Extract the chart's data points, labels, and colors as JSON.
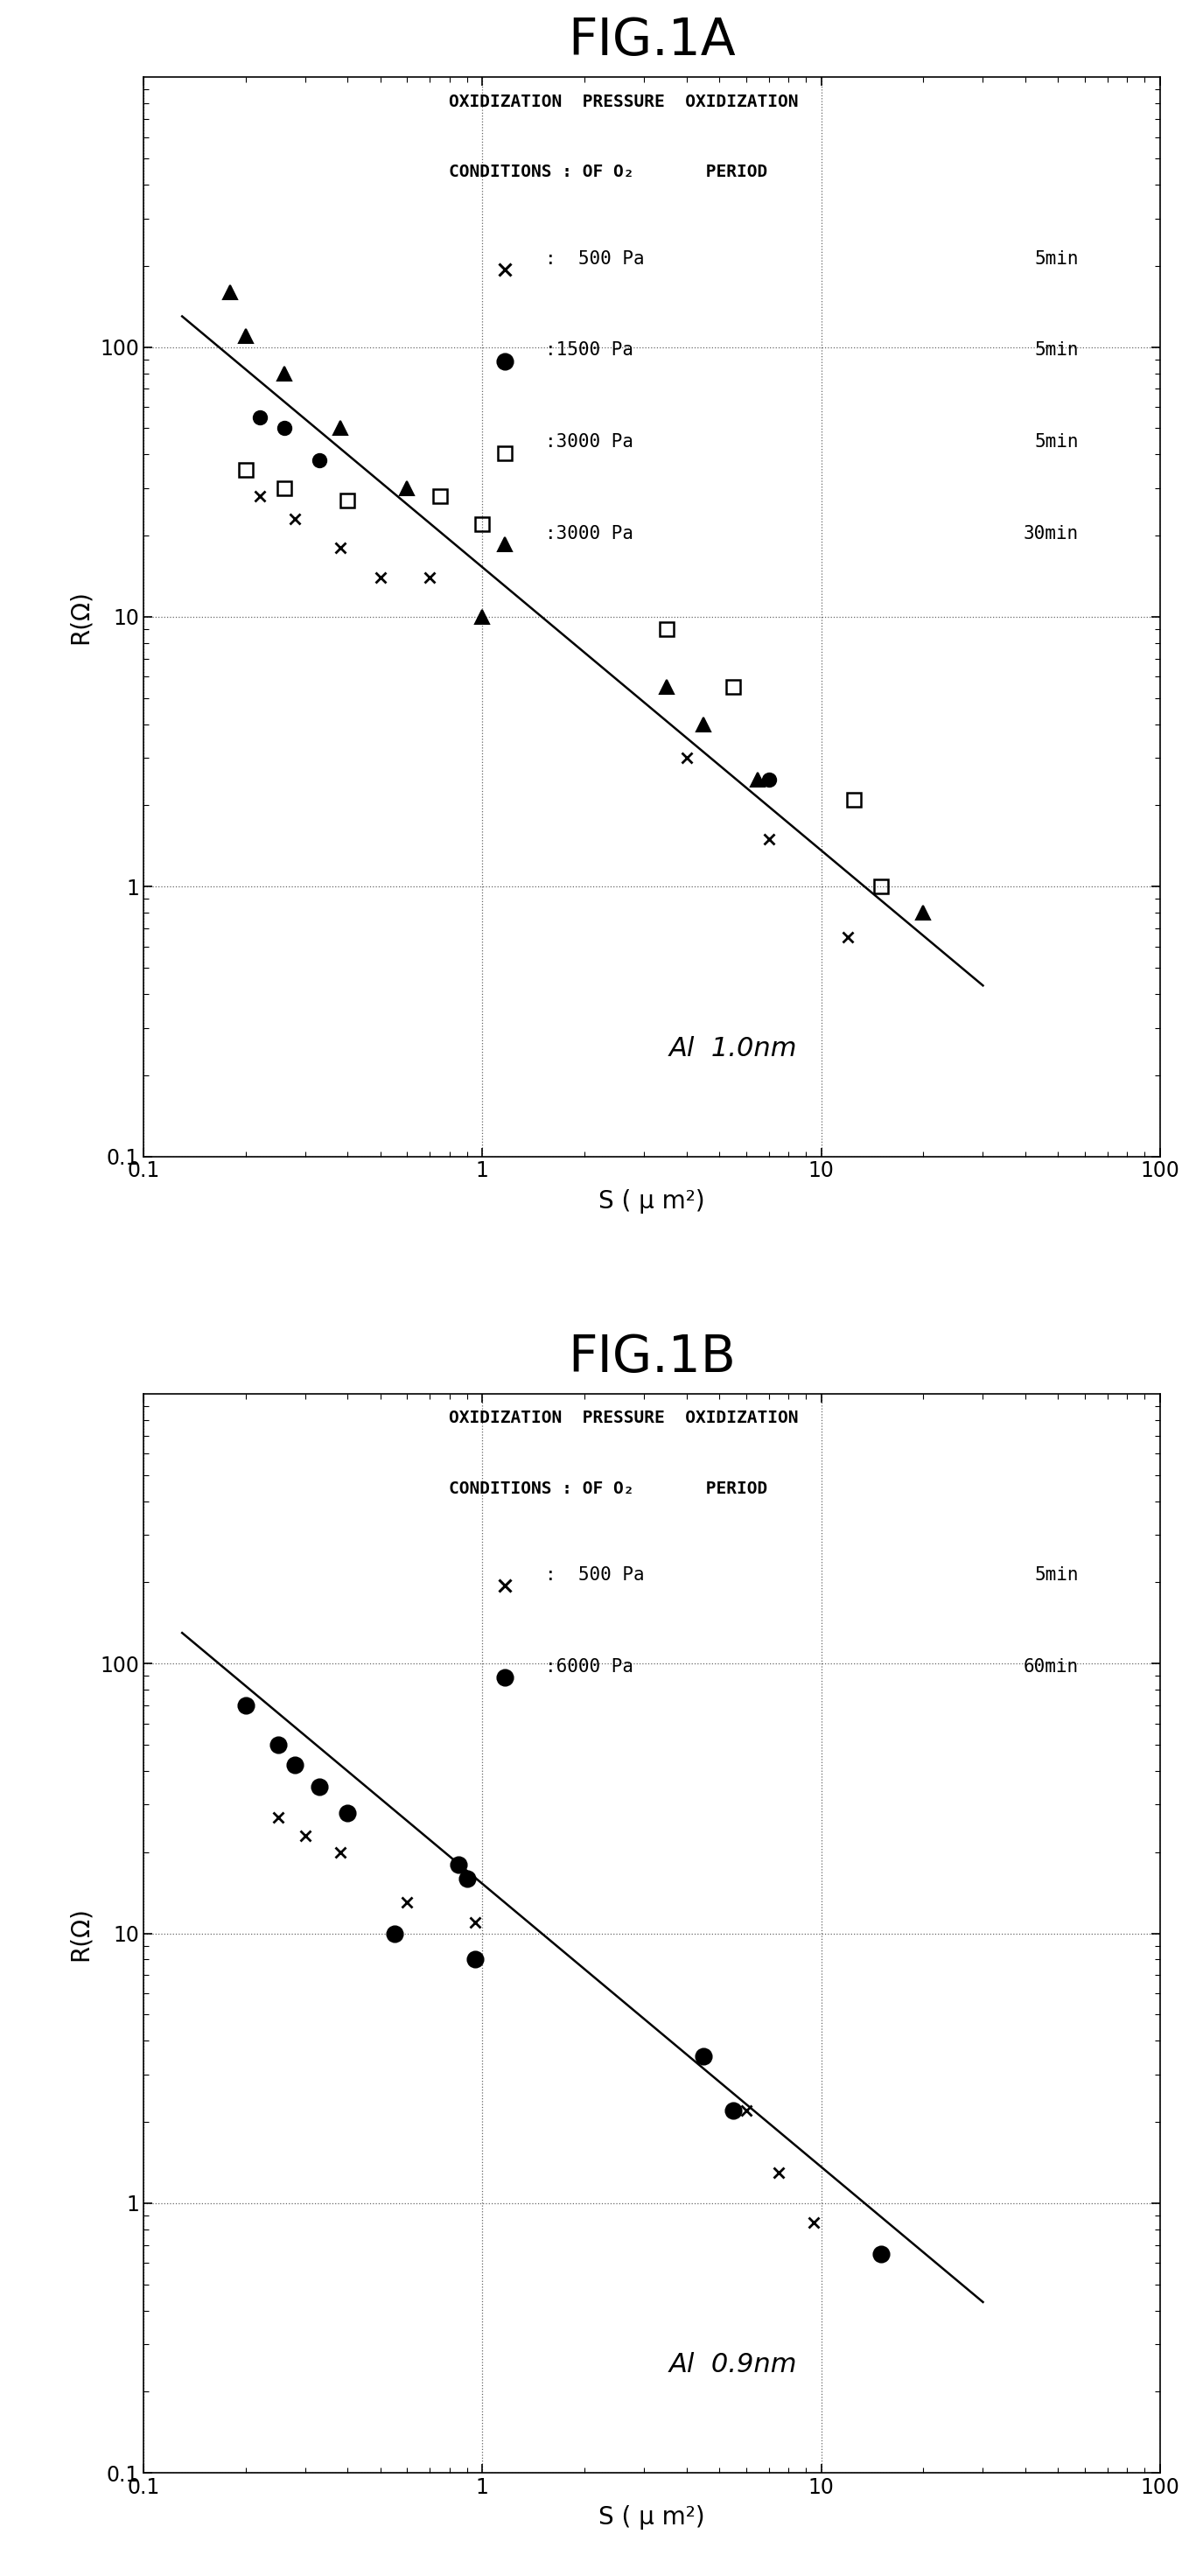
{
  "fig1a": {
    "title": "FIG.1A",
    "annotation": "Al  1.0nm",
    "xlabel": "S ( μ m²)",
    "ylabel": "R(Ω)",
    "xlim": [
      0.1,
      100
    ],
    "ylim": [
      0.1,
      1000
    ],
    "series": [
      {
        "marker": "x",
        "markersize": 9,
        "mew": 2.0,
        "color": "black",
        "filled": false,
        "x": [
          0.22,
          0.28,
          0.38,
          0.5,
          0.7,
          4.0,
          7.0,
          12.0
        ],
        "y": [
          28,
          23,
          18,
          14,
          14,
          3.0,
          1.5,
          0.65
        ]
      },
      {
        "marker": "o",
        "markersize": 11,
        "mew": 1.5,
        "color": "black",
        "filled": true,
        "x": [
          0.22,
          0.26,
          0.33,
          7.0
        ],
        "y": [
          55,
          50,
          38,
          2.5
        ]
      },
      {
        "marker": "s",
        "markersize": 11,
        "mew": 1.8,
        "color": "black",
        "filled": false,
        "x": [
          0.2,
          0.26,
          0.4,
          0.75,
          1.0,
          3.5,
          5.5,
          12.5,
          15.0
        ],
        "y": [
          35,
          30,
          27,
          28,
          22,
          9.0,
          5.5,
          2.1,
          1.0
        ]
      },
      {
        "marker": "^",
        "markersize": 11,
        "mew": 1.5,
        "color": "black",
        "filled": true,
        "x": [
          0.18,
          0.2,
          0.26,
          0.38,
          0.6,
          1.0,
          3.5,
          4.5,
          6.5,
          20.0
        ],
        "y": [
          160,
          110,
          80,
          50,
          30,
          10,
          5.5,
          4.0,
          2.5,
          0.8
        ]
      }
    ],
    "line_x": [
      0.13,
      30
    ],
    "line_y": [
      130,
      0.43
    ],
    "legend": [
      {
        "symbol": "x",
        "text1": "x :  500 Pa",
        "text2": "5min"
      },
      {
        "symbol": "o",
        "text1": "● :1500 Pa",
        "text2": "5min"
      },
      {
        "symbol": "s",
        "text1": "□ :3000 Pa",
        "text2": "5min"
      },
      {
        "symbol": "^",
        "text1": "▲ :3000 Pa",
        "text2": "30min"
      }
    ]
  },
  "fig1b": {
    "title": "FIG.1B",
    "annotation": "Al  0.9nm",
    "xlabel": "S ( μ m²)",
    "ylabel": "R(Ω)",
    "xlim": [
      0.1,
      100
    ],
    "ylim": [
      0.1,
      1000
    ],
    "series": [
      {
        "marker": "x",
        "markersize": 9,
        "mew": 2.0,
        "color": "black",
        "filled": false,
        "x": [
          0.25,
          0.3,
          0.38,
          0.6,
          0.95,
          4.5,
          6.0,
          7.5,
          9.5
        ],
        "y": [
          27,
          23,
          20,
          13,
          11,
          3.5,
          2.2,
          1.3,
          0.85
        ]
      },
      {
        "marker": "o",
        "markersize": 13,
        "mew": 1.5,
        "color": "black",
        "filled": true,
        "x": [
          0.2,
          0.25,
          0.28,
          0.33,
          0.4,
          0.55,
          0.85,
          0.9,
          0.95,
          4.5,
          5.5,
          15.0
        ],
        "y": [
          70,
          50,
          42,
          35,
          28,
          10,
          18,
          16,
          8.0,
          3.5,
          2.2,
          0.65
        ]
      }
    ],
    "line_x": [
      0.13,
      30
    ],
    "line_y": [
      130,
      0.43
    ],
    "legend": [
      {
        "symbol": "x",
        "text1": "x :  500 Pa",
        "text2": "5min"
      },
      {
        "symbol": "o",
        "text1": "● :6000 Pa",
        "text2": "60min"
      }
    ]
  },
  "header_line1": "OXIDIZATION  PRESSURE  OXIDIZATION",
  "header_line2": "CONDITIONS : OF O₂       PERIOD",
  "bg_color": "#f5f5f5",
  "title_fontsize": 42,
  "label_fontsize": 20,
  "tick_fontsize": 17,
  "legend_fontsize": 16,
  "annot_fontsize": 22
}
